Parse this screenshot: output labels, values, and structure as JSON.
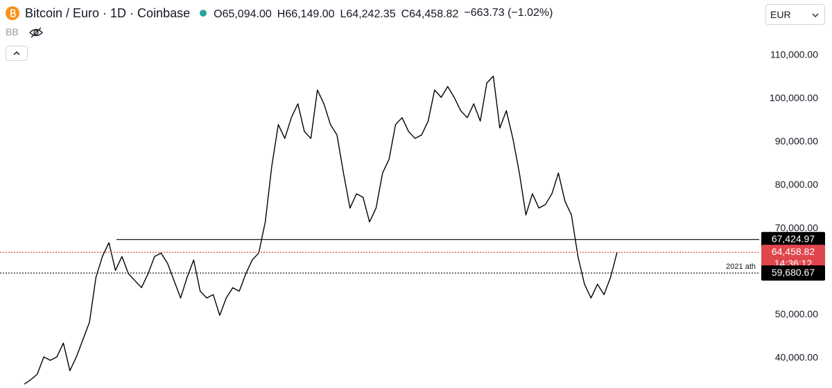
{
  "header": {
    "symbol": "Bitcoin / Euro · 1D · Coinbase",
    "ohlc": [
      {
        "key": "O",
        "value": "65,094.00"
      },
      {
        "key": "H",
        "value": "66,149.00"
      },
      {
        "key": "L",
        "value": "64,242.35"
      },
      {
        "key": "C",
        "value": "64,458.82"
      }
    ],
    "change": "−663.73 (−1.02%)",
    "indicator": "BB",
    "currency": "EUR"
  },
  "chart_data": {
    "type": "line",
    "color": "#000000",
    "values": [
      34000,
      35000,
      36300,
      40300,
      39500,
      40300,
      43500,
      37100,
      40300,
      44300,
      48300,
      58700,
      63500,
      66700,
      60300,
      63500,
      59500,
      57900,
      56300,
      59500,
      63500,
      64300,
      61900,
      57900,
      53900,
      58700,
      62700,
      55500,
      53900,
      54700,
      49900,
      53900,
      56300,
      55500,
      59500,
      62700,
      64300,
      71500,
      84400,
      94000,
      90800,
      95600,
      98800,
      92400,
      90800,
      102000,
      98800,
      94000,
      91600,
      82800,
      74700,
      78000,
      77200,
      71500,
      74700,
      82800,
      86000,
      94000,
      95600,
      92400,
      90800,
      91600,
      94800,
      102000,
      100300,
      102800,
      100300,
      97200,
      95600,
      98800,
      94800,
      103600,
      105200,
      93200,
      97200,
      90800,
      82800,
      73100,
      78000,
      74700,
      75500,
      78000,
      82800,
      76300,
      73100,
      63500,
      57100,
      53900,
      57100,
      54700,
      58700,
      64458.82
    ],
    "ylim": [
      33100,
      122800
    ],
    "yticks": [
      {
        "value": 40000,
        "label": "40,000.00"
      },
      {
        "value": 50000,
        "label": "50,000.00"
      },
      {
        "value": 70000,
        "label": "70,000.00"
      },
      {
        "value": 80000,
        "label": "80,000.00"
      },
      {
        "value": 90000,
        "label": "90,000.00"
      },
      {
        "value": 100000,
        "label": "100,000.00"
      },
      {
        "value": 110000,
        "label": "110,000.00"
      }
    ],
    "levels": [
      {
        "value": 67424.97,
        "label": "67,424.97",
        "color": "#000000",
        "style": "solid"
      },
      {
        "value": 64458.82,
        "label": "64,458.82",
        "countdown": "14:36:12",
        "color": "#e0474c",
        "style": "dotted"
      },
      {
        "value": 59680.67,
        "label": "59,680.67",
        "note": "2021 ath",
        "color": "#000000",
        "style": "dotted"
      }
    ]
  }
}
